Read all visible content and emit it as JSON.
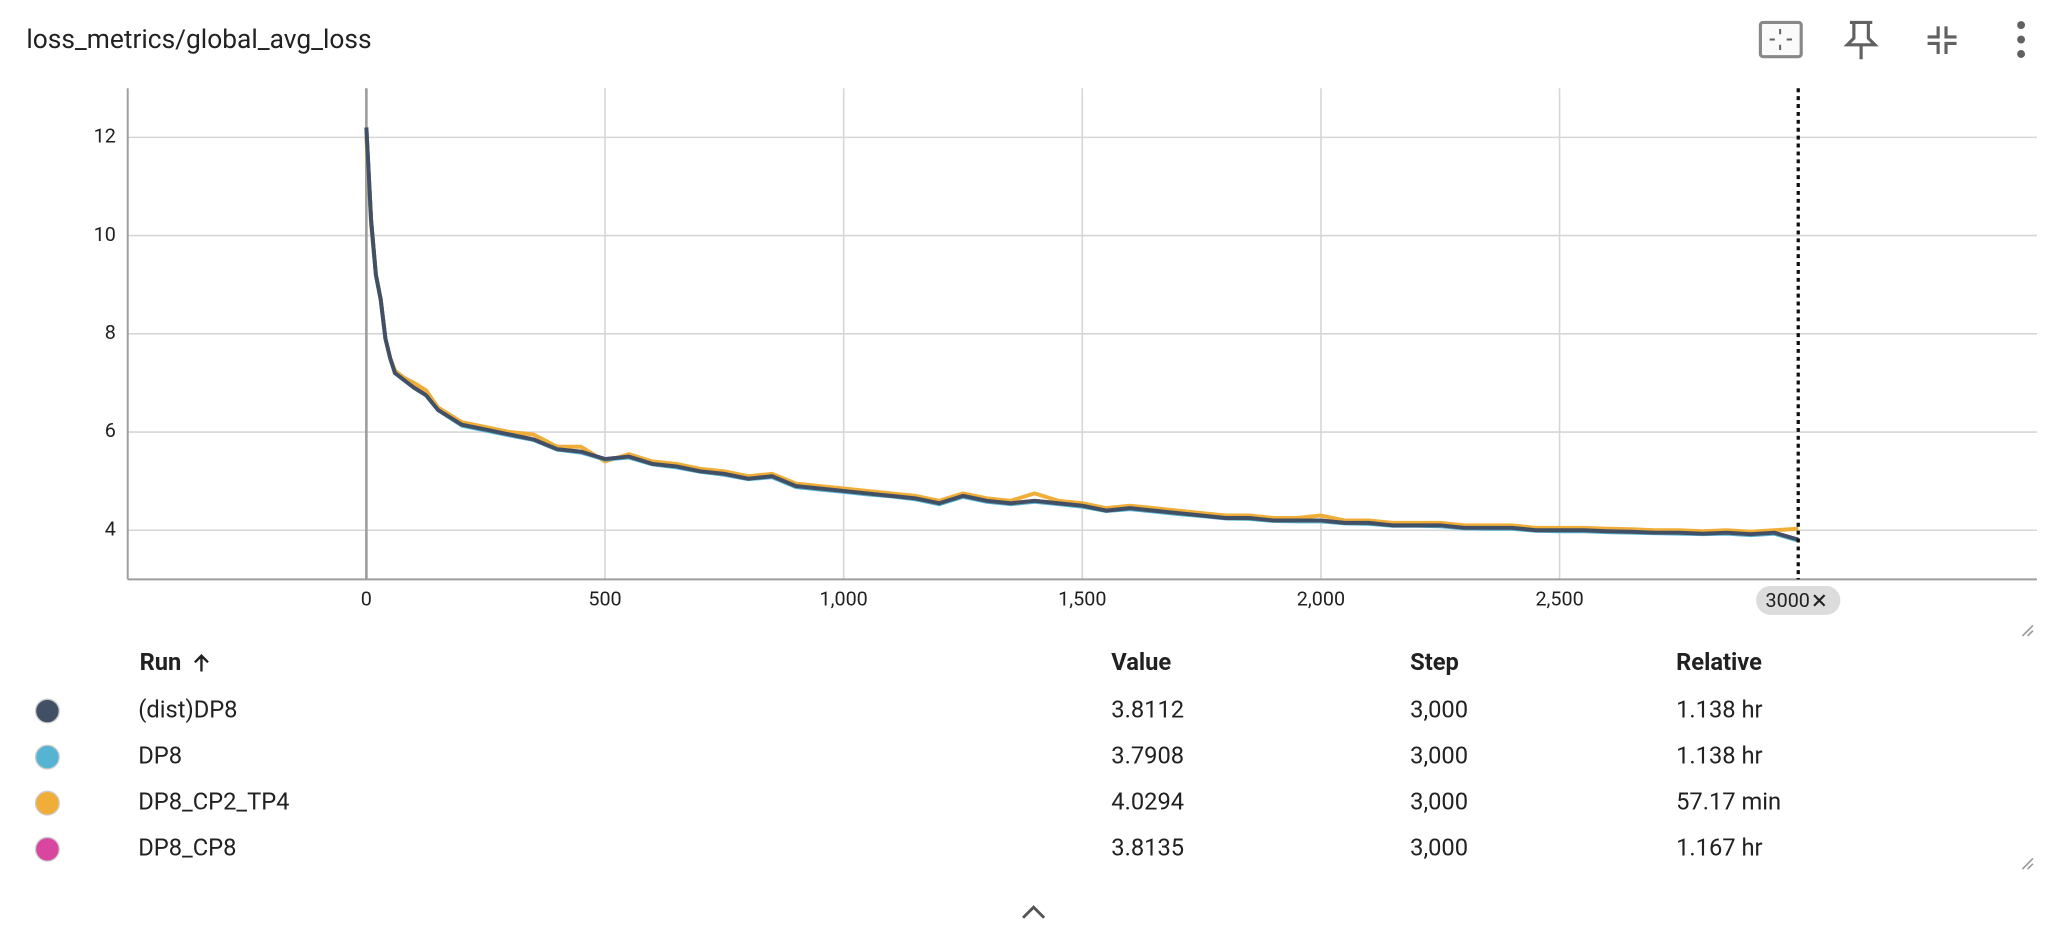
{
  "header": {
    "title": "loss_metrics/global_avg_loss"
  },
  "chart_data": {
    "type": "line",
    "x": [
      0,
      10,
      20,
      30,
      40,
      50,
      60,
      80,
      100,
      125,
      150,
      200,
      250,
      300,
      350,
      400,
      450,
      500,
      550,
      600,
      650,
      700,
      750,
      800,
      850,
      900,
      950,
      1000,
      1050,
      1100,
      1150,
      1200,
      1250,
      1300,
      1350,
      1400,
      1450,
      1500,
      1550,
      1600,
      1650,
      1700,
      1750,
      1800,
      1850,
      1900,
      1950,
      2000,
      2050,
      2100,
      2150,
      2200,
      2250,
      2300,
      2350,
      2400,
      2450,
      2500,
      2550,
      2600,
      2650,
      2700,
      2750,
      2800,
      2850,
      2900,
      2950,
      3000
    ],
    "series": [
      {
        "name": "(dist)DP8",
        "color": "#425066",
        "values": [
          12.2,
          10.3,
          9.2,
          8.7,
          7.9,
          7.5,
          7.2,
          7.05,
          6.9,
          6.75,
          6.45,
          6.15,
          6.05,
          5.95,
          5.85,
          5.65,
          5.6,
          5.45,
          5.5,
          5.35,
          5.3,
          5.2,
          5.15,
          5.05,
          5.1,
          4.9,
          4.85,
          4.8,
          4.75,
          4.7,
          4.65,
          4.55,
          4.7,
          4.6,
          4.55,
          4.6,
          4.55,
          4.5,
          4.4,
          4.45,
          4.4,
          4.35,
          4.3,
          4.25,
          4.25,
          4.2,
          4.2,
          4.2,
          4.15,
          4.15,
          4.1,
          4.1,
          4.1,
          4.05,
          4.05,
          4.05,
          4.0,
          4.0,
          4.0,
          3.98,
          3.97,
          3.95,
          3.95,
          3.93,
          3.95,
          3.92,
          3.95,
          3.81
        ]
      },
      {
        "name": "DP8",
        "color": "#56b4d3",
        "values": [
          12.2,
          10.3,
          9.2,
          8.7,
          7.9,
          7.5,
          7.2,
          7.05,
          6.9,
          6.75,
          6.45,
          6.13,
          6.03,
          5.93,
          5.84,
          5.64,
          5.58,
          5.44,
          5.48,
          5.34,
          5.28,
          5.19,
          5.13,
          5.04,
          5.08,
          4.88,
          4.83,
          4.78,
          4.73,
          4.69,
          4.63,
          4.53,
          4.68,
          4.58,
          4.53,
          4.58,
          4.53,
          4.48,
          4.39,
          4.43,
          4.38,
          4.33,
          4.29,
          4.24,
          4.23,
          4.19,
          4.18,
          4.18,
          4.14,
          4.13,
          4.09,
          4.09,
          4.08,
          4.04,
          4.03,
          4.03,
          3.99,
          3.98,
          3.98,
          3.96,
          3.95,
          3.94,
          3.93,
          3.92,
          3.93,
          3.9,
          3.93,
          3.79
        ]
      },
      {
        "name": "DP8_CP2_TP4",
        "color": "#f0ae38",
        "values": [
          12.0,
          10.2,
          9.2,
          8.7,
          7.9,
          7.5,
          7.25,
          7.1,
          7.0,
          6.85,
          6.5,
          6.2,
          6.1,
          6.0,
          5.95,
          5.7,
          5.7,
          5.4,
          5.55,
          5.4,
          5.35,
          5.25,
          5.2,
          5.1,
          5.15,
          4.95,
          4.9,
          4.85,
          4.8,
          4.75,
          4.7,
          4.6,
          4.75,
          4.65,
          4.6,
          4.75,
          4.6,
          4.55,
          4.45,
          4.5,
          4.45,
          4.4,
          4.35,
          4.3,
          4.3,
          4.25,
          4.25,
          4.3,
          4.2,
          4.2,
          4.15,
          4.15,
          4.15,
          4.1,
          4.1,
          4.1,
          4.05,
          4.05,
          4.05,
          4.03,
          4.02,
          4.0,
          4.0,
          3.98,
          4.0,
          3.97,
          4.0,
          4.03
        ]
      },
      {
        "name": "DP8_CP8",
        "color": "#d946a0",
        "values": [
          12.2,
          10.3,
          9.2,
          8.7,
          7.9,
          7.5,
          7.2,
          7.05,
          6.95,
          6.8,
          6.45,
          6.15,
          6.05,
          5.95,
          5.85,
          5.65,
          5.6,
          5.45,
          5.5,
          5.35,
          5.3,
          5.22,
          5.16,
          5.06,
          5.1,
          4.9,
          4.85,
          4.8,
          4.75,
          4.7,
          4.65,
          4.56,
          4.7,
          4.6,
          4.55,
          4.6,
          4.55,
          4.5,
          4.4,
          4.45,
          4.4,
          4.35,
          4.3,
          4.25,
          4.25,
          4.2,
          4.2,
          4.2,
          4.15,
          4.15,
          4.1,
          4.1,
          4.1,
          4.05,
          4.05,
          4.05,
          4.0,
          4.0,
          4.0,
          3.98,
          3.97,
          3.95,
          3.95,
          3.93,
          3.95,
          3.92,
          3.95,
          3.81
        ]
      }
    ],
    "xlim": [
      -500,
      3500
    ],
    "xticks": [
      0,
      500,
      {
        "value": 1000,
        "label": "1,000"
      },
      {
        "value": 1500,
        "label": "1,500"
      },
      {
        "value": 2000,
        "label": "2,000"
      },
      {
        "value": 2500,
        "label": "2,500"
      }
    ],
    "ylim": [
      3,
      13
    ],
    "yticks": [
      4,
      6,
      8,
      10,
      12
    ],
    "grid": true,
    "cursor_step": 3000
  },
  "table": {
    "columns": [
      "Run",
      "Value",
      "Step",
      "Relative"
    ],
    "rows": [
      [
        "(dist)DP8",
        "3.8112",
        "3,000",
        "1.138 hr"
      ],
      [
        "DP8",
        "3.7908",
        "3,000",
        "1.138 hr"
      ],
      [
        "DP8_CP2_TP4",
        "4.0294",
        "3,000",
        "57.17 min"
      ],
      [
        "DP8_CP8",
        "3.8135",
        "3,000",
        "1.167 hr"
      ]
    ]
  }
}
